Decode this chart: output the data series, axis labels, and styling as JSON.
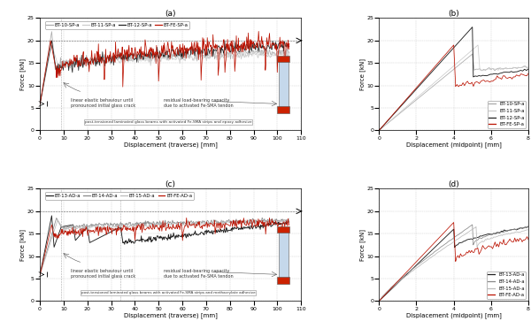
{
  "fig_title_a": "(a)",
  "fig_title_b": "(b)",
  "fig_title_c": "(c)",
  "fig_title_d": "(d)",
  "subplot_a": {
    "xlabel": "Displacement (traverse) [mm]",
    "ylabel": "Force [kN]",
    "xlim": [
      0,
      110
    ],
    "ylim": [
      0,
      25
    ],
    "xticks": [
      0,
      10,
      20,
      30,
      40,
      50,
      60,
      70,
      80,
      90,
      100,
      110
    ],
    "yticks": [
      0,
      5,
      10,
      15,
      20,
      25
    ],
    "annotation_text1": "linear elastic behaviour until\npronounced initial glass crack",
    "annotation_text2": "residual load-bearing capacity\ndue to activated Fe-SMA tendon",
    "box_text": "post-tensioned laminated glass beams with activated Fe-SMA strips and epoxy adhesive",
    "dashed_hline_y": 20,
    "vline_x": 9,
    "pre_stress_y": 5.9,
    "pre_stress_x": 3.0
  },
  "subplot_b": {
    "xlabel": "Displacement (midpoint) [mm]",
    "ylabel": "Force [kN]",
    "xlim": [
      0,
      8
    ],
    "ylim": [
      0,
      25
    ],
    "xticks": [
      0,
      2,
      4,
      6,
      8
    ],
    "yticks": [
      0,
      5,
      10,
      15,
      20,
      25
    ]
  },
  "subplot_c": {
    "xlabel": "Displacement (traverse) [mm]",
    "ylabel": "Force [kN]",
    "xlim": [
      0,
      110
    ],
    "ylim": [
      0,
      25
    ],
    "xticks": [
      0,
      10,
      20,
      30,
      40,
      50,
      60,
      70,
      80,
      90,
      100,
      110
    ],
    "yticks": [
      0,
      5,
      10,
      15,
      20,
      25
    ],
    "annotation_text1": "linear elastic behaviour until\npronounced initial glass crack",
    "annotation_text2": "residual load-bearing capacity\ndue to activated Fe-SMA tendon",
    "box_text": "post-tensioned laminated glass beams with activated Fe-SMA strips and methacrylate adhesive",
    "dashed_hline_y": 20,
    "vline_x": 9,
    "vline_x2": 34,
    "pre_stress_y": 5.9,
    "pre_stress_x": 3.0
  },
  "subplot_d": {
    "xlabel": "Displacement (midpoint) [mm]",
    "ylabel": "Force [kN]",
    "xlim": [
      0,
      8
    ],
    "ylim": [
      0,
      25
    ],
    "xticks": [
      0,
      2,
      4,
      6,
      8
    ],
    "yticks": [
      0,
      5,
      10,
      15,
      20,
      25
    ]
  },
  "colors": {
    "BT10": "#aaaaaa",
    "BT11": "#cccccc",
    "BT12": "#222222",
    "BTFE": "#bb1100",
    "BT13": "#222222",
    "BT14": "#888888",
    "BT15": "#bbbbbb",
    "BTFE_ad": "#bb1100"
  },
  "legend_a": [
    "BT-10-SP-a",
    "BT-11-SP-a",
    "BT-12-SP-a",
    "BT-FE-SP-a"
  ],
  "legend_b": [
    "BT-10-SP-a",
    "BT-11-SP-a",
    "BT-12-SP-a",
    "BT-FE-SP-a"
  ],
  "legend_c": [
    "BT-13-AD-a",
    "BT-14-AD-a",
    "BT-15-AD-a",
    "BT-FE-AD-a"
  ],
  "legend_d": [
    "BT-13-AD-a",
    "BT-14-AD-a",
    "BT-15-AD-a",
    "BT-FE-AD-a"
  ]
}
